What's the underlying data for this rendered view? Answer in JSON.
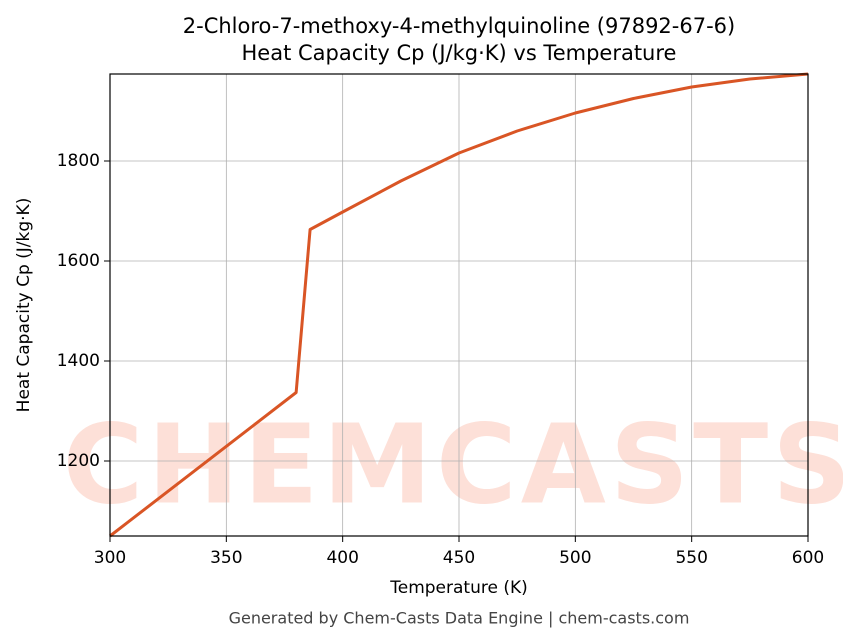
{
  "chart_data": {
    "type": "line",
    "title": "2-Chloro-7-methoxy-4-methylquinoline (97892-67-6)",
    "subtitle": "Heat Capacity Cp (J/kg·K) vs Temperature",
    "x_label": "Temperature (K)",
    "y_label": "Heat Capacity Cp (J/kg·K)",
    "watermark": "CHEMCASTS",
    "footer": "Generated by Chem-Casts Data Engine | chem-casts.com",
    "x": [
      300,
      380,
      386,
      400,
      425,
      450,
      475,
      500,
      525,
      550,
      575,
      600
    ],
    "series": [
      {
        "name": "Cp",
        "color": "#d95525",
        "values": [
          1050,
          1337,
          1663,
          1698,
          1760,
          1816,
          1860,
          1896,
          1925,
          1948,
          1964,
          1974
        ]
      }
    ],
    "xlim": [
      300,
      600
    ],
    "xticks": [
      300,
      350,
      400,
      450,
      500,
      550,
      600
    ],
    "ylim": [
      1050,
      1974
    ],
    "yticks": [
      1200,
      1400,
      1600,
      1800
    ],
    "grid": true
  }
}
